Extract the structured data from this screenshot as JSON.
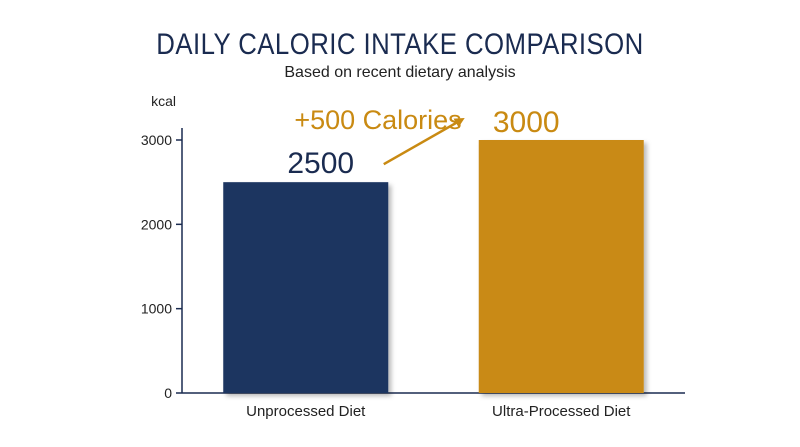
{
  "chart_data": {
    "type": "bar",
    "title": "DAILY CALORIC INTAKE COMPARISON",
    "subtitle": "Based on recent dietary analysis",
    "ylabel": "kcal",
    "xlabel": "",
    "ylim": [
      0,
      3000
    ],
    "yticks": [
      0,
      1000,
      2000,
      3000
    ],
    "categories": [
      "Unprocessed Diet",
      "Ultra-Processed Diet"
    ],
    "values": [
      2500,
      3000
    ],
    "value_labels": [
      "2500",
      "3000"
    ],
    "bar_colors": [
      "#1b3460",
      "#c98a12"
    ],
    "grid": false,
    "annotation": {
      "text": "+500 Calories",
      "from_category": "Unprocessed Diet",
      "to_category": "Ultra-Processed Diet",
      "color": "#c98a12"
    }
  },
  "colors": {
    "title": "#1a2b50",
    "axis": "#1a2b50"
  }
}
